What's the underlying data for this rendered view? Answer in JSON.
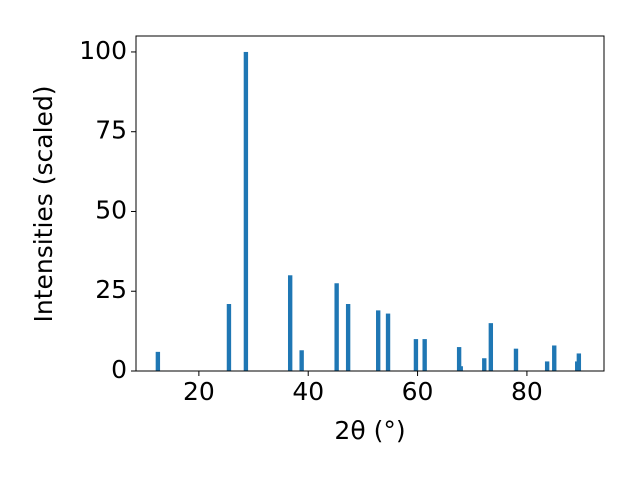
{
  "chart_data": {
    "type": "bar",
    "x_label": "2θ (°)",
    "y_label": "Intensities (scaled)",
    "x": [
      12.5,
      25.5,
      28.6,
      36.7,
      38.8,
      45.2,
      47.3,
      52.8,
      54.6,
      59.7,
      61.3,
      67.6,
      67.9,
      72.2,
      73.4,
      78.0,
      83.7,
      85.0,
      89.2,
      89.5
    ],
    "values": [
      6,
      21,
      100,
      30,
      6.5,
      27.5,
      21,
      19,
      18,
      10,
      10,
      7.5,
      1.5,
      4,
      15,
      7,
      3,
      8,
      3,
      5.5
    ],
    "color": "#1f77b4",
    "xlim": [
      8.5,
      94.1
    ],
    "xticks": [
      20,
      40,
      60,
      80
    ],
    "ylim": [
      0,
      105
    ],
    "yticks": [
      0,
      25,
      50,
      75,
      100
    ],
    "grid": false
  }
}
